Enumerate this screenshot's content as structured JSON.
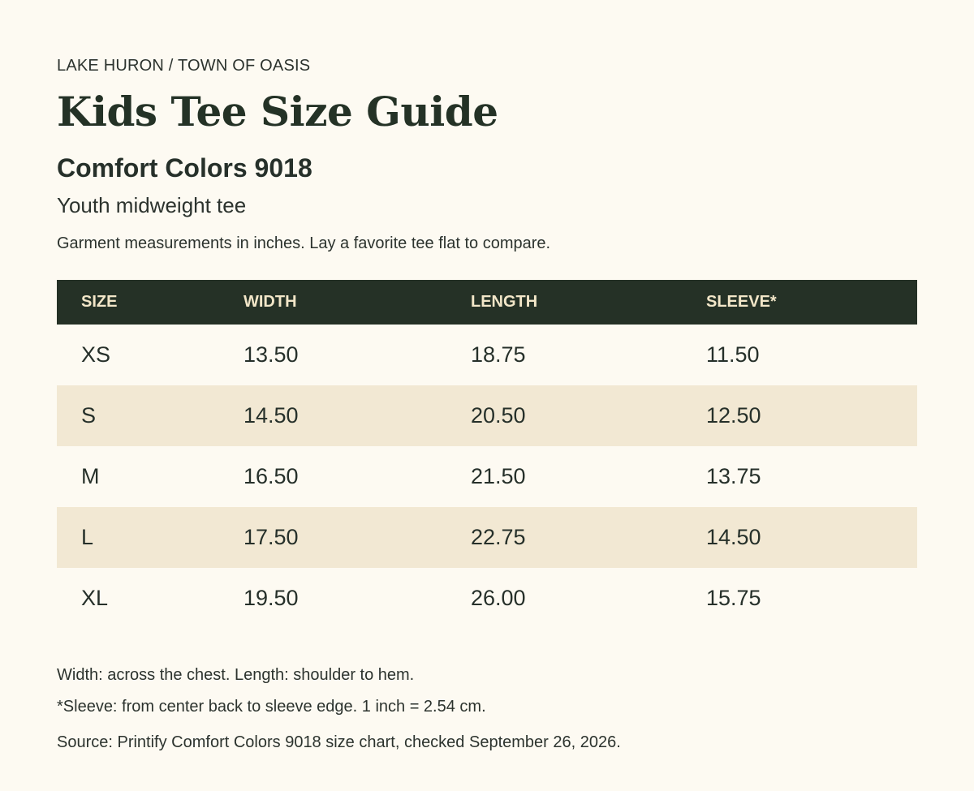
{
  "header": {
    "breadcrumb": "LAKE HURON / TOWN OF OASIS",
    "title": "Kids Tee Size Guide",
    "subtitle": "Comfort Colors 9018",
    "tagline": "Youth midweight tee",
    "intro": "Garment measurements in inches. Lay a favorite tee flat to compare."
  },
  "table": {
    "columns": [
      "SIZE",
      "WIDTH",
      "LENGTH",
      "SLEEVE*"
    ],
    "rows": [
      [
        "XS",
        "13.50",
        "18.75",
        "11.50"
      ],
      [
        "S",
        "14.50",
        "20.50",
        "12.50"
      ],
      [
        "M",
        "16.50",
        "21.50",
        "13.75"
      ],
      [
        "L",
        "17.50",
        "22.75",
        "14.50"
      ],
      [
        "XL",
        "19.50",
        "26.00",
        "15.75"
      ]
    ]
  },
  "footer": {
    "note_width_length": "Width: across the chest. Length: shoulder to hem.",
    "note_sleeve": "*Sleeve: from center back to sleeve edge. 1 inch = 2.54 cm.",
    "source": "Source: Printify Comfort Colors 9018 size chart, checked September 26, 2026."
  },
  "colors": {
    "background": "#fdfaf2",
    "header_row": "#253126",
    "header_text": "#f2e6c8",
    "alt_row": "#f2e8d3",
    "text": "#26302a"
  }
}
